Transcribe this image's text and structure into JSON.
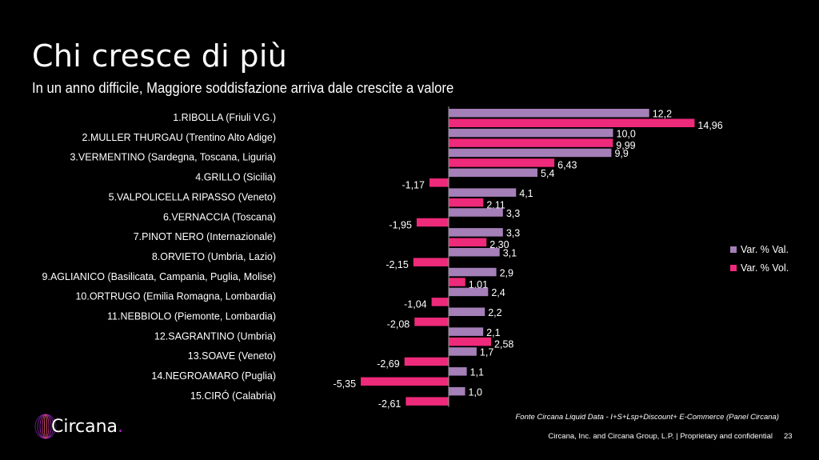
{
  "header": {
    "title": "Chi cresce di più",
    "subtitle": "In un anno difficile, Maggiore soddisfazione arriva dale crescite a valore"
  },
  "chart_data": {
    "type": "bar",
    "orientation": "horizontal",
    "categories": [
      "1.RIBOLLA (Friuli V.G.)",
      "2.MULLER THURGAU (Trentino Alto Adige)",
      "3.VERMENTINO (Sardegna, Toscana, Liguria)",
      "4.GRILLO (Sicilia)",
      "5.VALPOLICELLA RIPASSO (Veneto)",
      "6.VERNACCIA (Toscana)",
      "7.PINOT NERO (Internazionale)",
      "8.ORVIETO (Umbria, Lazio)",
      "9.AGLIANICO (Basilicata, Campania, Puglia, Molise)",
      "10.ORTRUGO (Emilia Romagna, Lombardia)",
      "11.NEBBIOLO (Piemonte, Lombardia)",
      "12.SAGRANTINO (Umbria)",
      "13.SOAVE (Veneto)",
      "14.NEGROAMARO (Puglia)",
      "15.CIRÓ (Calabria)"
    ],
    "series": [
      {
        "name": "Var. % Val.",
        "color": "#a57fb8",
        "values": [
          12.2,
          10.0,
          9.9,
          5.4,
          4.1,
          3.3,
          3.3,
          3.1,
          2.9,
          2.4,
          2.2,
          2.1,
          1.7,
          1.1,
          1.0
        ],
        "labels": [
          "12,2",
          "10,0",
          "9,9",
          "5,4",
          "4,1",
          "3,3",
          "3,3",
          "3,1",
          "2,9",
          "2,4",
          "2,2",
          "2,1",
          "1,7",
          "1,1",
          "1,0"
        ]
      },
      {
        "name": "Var. % Vol.",
        "color": "#ee2a7b",
        "values": [
          14.96,
          9.99,
          6.43,
          -1.17,
          2.11,
          -1.95,
          2.3,
          -2.15,
          1.01,
          -1.04,
          -2.08,
          2.58,
          -2.69,
          -5.35,
          -2.61
        ],
        "labels": [
          "14,96",
          "9,99",
          "6,43",
          "-1,17",
          "2,11",
          "-1,95",
          "2,30",
          "-2,15",
          "1,01",
          "-1,04",
          "-2,08",
          "2,58",
          "-2,69",
          "-5,35",
          "-2,61"
        ]
      }
    ],
    "legend_position": "right",
    "grid": false
  },
  "footer": {
    "logo_text": "Circana",
    "logo_dot": ".",
    "source": "Fonte  Circana Liquid Data -  I+S+Lsp+Discount+ E-Commerce (Panel Circana)",
    "copyright": "Circana, Inc. and Circana Group, L.P. |  Proprietary and confidential",
    "page_number": "23"
  }
}
